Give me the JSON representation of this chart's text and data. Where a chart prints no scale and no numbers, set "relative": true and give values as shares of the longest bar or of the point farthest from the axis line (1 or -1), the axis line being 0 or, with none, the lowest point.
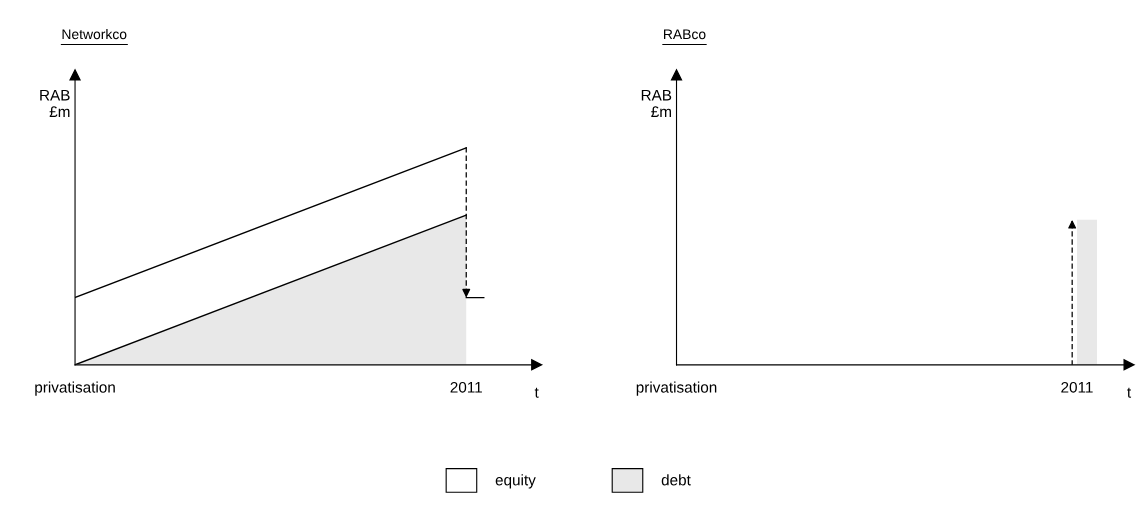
{
  "chart_data": [
    {
      "type": "area",
      "title": "Networkco",
      "ylabel": "RAB\n£m",
      "xlabel": "t",
      "categories": [
        "privatisation",
        "2011"
      ],
      "relative": true,
      "stacked": true,
      "legend": "bottom",
      "series": [
        {
          "name": "debt",
          "color": "#e8e8e8",
          "values": [
            0,
            0.69
          ]
        },
        {
          "name": "equity",
          "color": "#ffffff",
          "values": [
            0.31,
            0.31
          ]
        }
      ]
    },
    {
      "type": "bar",
      "title": "RABco",
      "ylabel": "RAB\n£m",
      "xlabel": "t",
      "categories": [
        "privatisation",
        "2011"
      ],
      "relative": true,
      "series": [
        {
          "color": "#e8e8e8",
          "values": [
            null,
            1
          ]
        }
      ]
    }
  ]
}
